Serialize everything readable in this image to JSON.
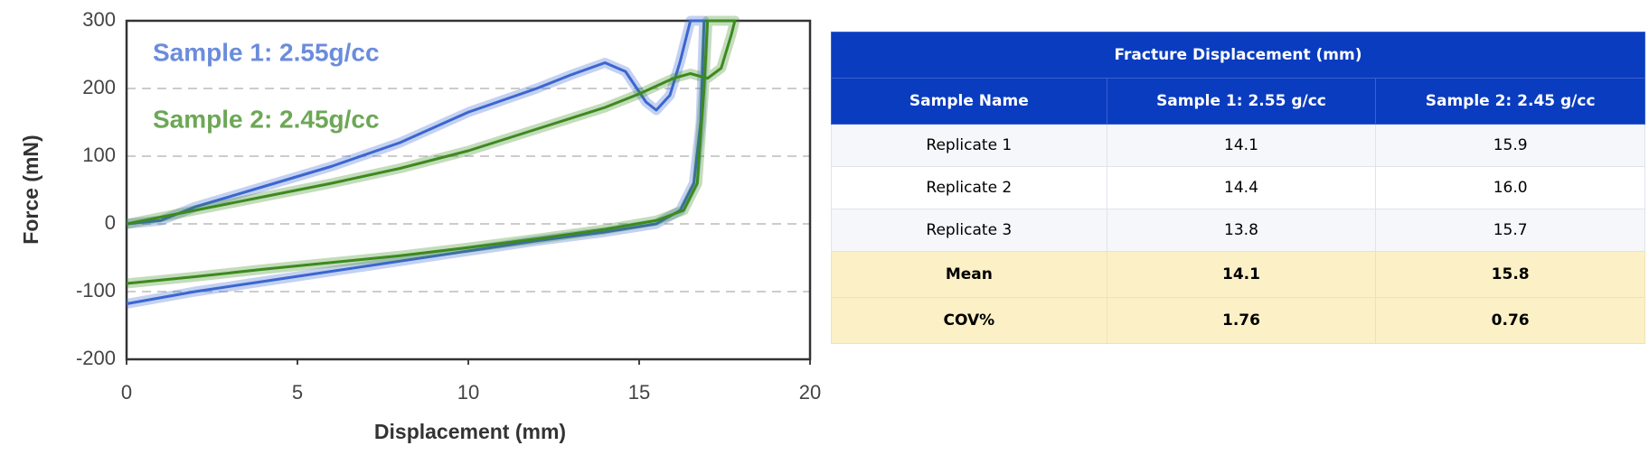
{
  "chart_data": {
    "type": "line",
    "xlabel": "Displacement (mm)",
    "ylabel": "Force (mN)",
    "xlim": [
      0,
      20
    ],
    "xticks": [
      0,
      5,
      10,
      15,
      20
    ],
    "ylim": [
      -200,
      300
    ],
    "yticks": [
      -200,
      -100,
      0,
      100,
      200,
      300
    ],
    "grid": true,
    "series": [
      {
        "name": "Sample 1: 2.55g/cc",
        "color": "#3a66d0",
        "x": [
          0,
          1,
          2,
          4,
          6,
          8,
          10,
          12,
          13,
          14,
          14.6,
          15.2,
          15.5,
          15.9,
          16.2,
          16.5,
          16.9,
          16.8,
          16.6,
          16.2,
          15.5,
          14,
          12,
          10,
          8,
          6,
          4,
          2,
          0
        ],
        "values": [
          0,
          5,
          25,
          55,
          85,
          120,
          165,
          200,
          220,
          238,
          225,
          180,
          168,
          190,
          240,
          300,
          300,
          150,
          60,
          20,
          0,
          -12,
          -25,
          -40,
          -55,
          -70,
          -85,
          -100,
          -118
        ]
      },
      {
        "name": "Sample 2: 2.45g/cc",
        "color": "#3c8a1e",
        "x": [
          0,
          2,
          4,
          6,
          8,
          10,
          12,
          14,
          15,
          16,
          16.5,
          17,
          17.4,
          17.7,
          17.8,
          17,
          16.9,
          16.7,
          16.3,
          15.5,
          14,
          12,
          10,
          8,
          6,
          4,
          2,
          0
        ],
        "values": [
          0,
          20,
          40,
          60,
          82,
          108,
          140,
          172,
          192,
          215,
          222,
          215,
          230,
          280,
          300,
          300,
          200,
          60,
          20,
          5,
          -8,
          -22,
          -35,
          -47,
          -57,
          -67,
          -78,
          -88
        ]
      }
    ]
  },
  "table": {
    "title": "Fracture Displacement (mm)",
    "header": [
      "Sample Name",
      "Sample 1: 2.55 g/cc",
      "Sample 2: 2.45 g/cc"
    ],
    "rows": [
      [
        "Replicate 1",
        "14.1",
        "15.9"
      ],
      [
        "Replicate 2",
        "14.4",
        "16.0"
      ],
      [
        "Replicate 3",
        "13.8",
        "15.7"
      ],
      [
        "Mean",
        "14.1",
        "15.8"
      ],
      [
        "COV%",
        "1.76",
        "0.76"
      ]
    ]
  }
}
